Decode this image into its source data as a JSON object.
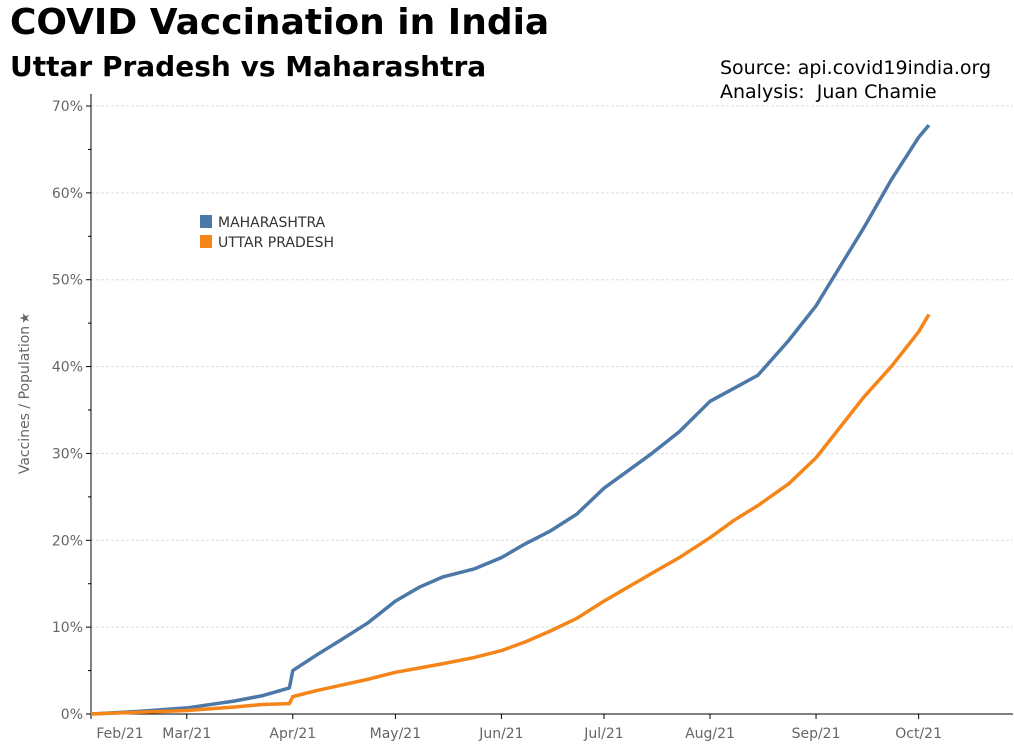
{
  "chart_data": {
    "type": "line",
    "title": "COVID Vaccination in India",
    "subtitle": "Uttar Pradesh vs Maharashtra",
    "annotations": [
      "Source: api.covid19india.org",
      "Analysis:  Juan Chamie"
    ],
    "xlabel": "",
    "ylabel": "Vaccines / Population",
    "x_unit": "days since 2021-02-01",
    "xlim": [
      0,
      270
    ],
    "ylim": [
      0,
      70
    ],
    "yticks": [
      0,
      10,
      20,
      30,
      40,
      50,
      60,
      70
    ],
    "ytick_labels": [
      "0%",
      "10%",
      "20%",
      "30%",
      "40%",
      "50%",
      "60%",
      "70%"
    ],
    "xticks": [
      0,
      28,
      59,
      89,
      120,
      150,
      181,
      212,
      242
    ],
    "xtick_labels": [
      "Feb/21",
      "Mar/21",
      "Apr/21",
      "May/21",
      "Jun/21",
      "Jul/21",
      "Aug/21",
      "Sep/21",
      "Oct/21"
    ],
    "grid": true,
    "legend_position": "top-left",
    "series": [
      {
        "name": "MAHARASHTRA",
        "color": "#4c78a8",
        "x": [
          0,
          14,
          28,
          42,
          50,
          58,
          59,
          66,
          73,
          81,
          89,
          96,
          103,
          112,
          120,
          127,
          134,
          142,
          150,
          157,
          164,
          172,
          181,
          188,
          195,
          204,
          212,
          219,
          226,
          234,
          242,
          245
        ],
        "y": [
          0,
          0.3,
          0.7,
          1.5,
          2.1,
          3.0,
          5.0,
          6.8,
          8.5,
          10.5,
          13.0,
          14.6,
          15.8,
          16.7,
          18.0,
          19.6,
          21.0,
          23.0,
          26.0,
          28.0,
          30.0,
          32.5,
          36.0,
          37.5,
          39.0,
          43.0,
          47.0,
          51.5,
          56.0,
          61.5,
          66.4,
          67.8
        ]
      },
      {
        "name": "UTTAR PRADESH",
        "color": "#f58518",
        "x": [
          0,
          14,
          28,
          42,
          50,
          58,
          59,
          66,
          73,
          81,
          89,
          96,
          103,
          112,
          120,
          127,
          134,
          142,
          150,
          157,
          164,
          172,
          181,
          188,
          195,
          204,
          212,
          219,
          226,
          234,
          242,
          245
        ],
        "y": [
          0,
          0.2,
          0.4,
          0.8,
          1.1,
          1.2,
          2.0,
          2.7,
          3.3,
          4.0,
          4.8,
          5.3,
          5.8,
          6.5,
          7.3,
          8.3,
          9.5,
          11.0,
          13.0,
          14.6,
          16.2,
          18.0,
          20.3,
          22.3,
          24.0,
          26.5,
          29.5,
          33.0,
          36.5,
          40.0,
          44.0,
          46.0
        ]
      }
    ]
  }
}
